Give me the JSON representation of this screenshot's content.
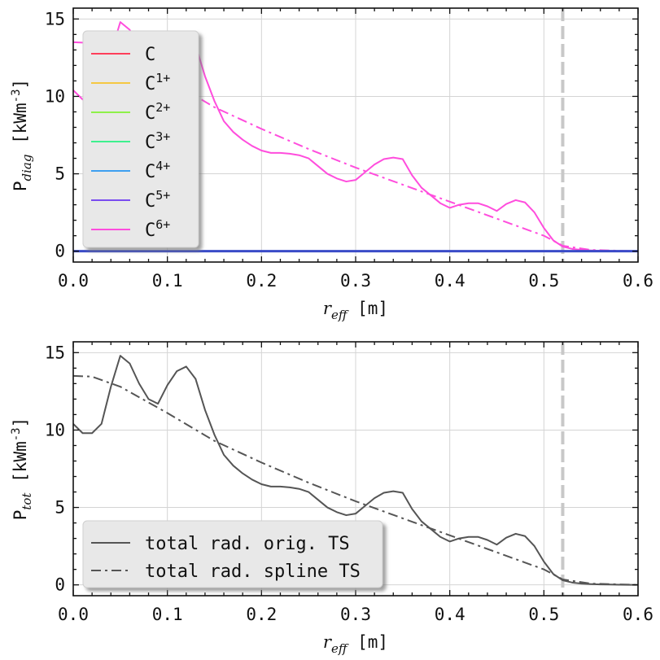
{
  "chart_data": [
    {
      "type": "line",
      "xlabel": "r_eff [m]",
      "ylabel": "P_diag [kWm^-3]",
      "xlim": [
        0.0,
        0.6
      ],
      "ylim": [
        -0.7,
        15.7
      ],
      "xticks": [
        0.0,
        0.1,
        0.2,
        0.3,
        0.4,
        0.5,
        0.6
      ],
      "xtick_labels": [
        "0.0",
        "0.1",
        "0.2",
        "0.3",
        "0.4",
        "0.5",
        "0.6"
      ],
      "yticks": [
        0,
        5,
        10,
        15
      ],
      "ytick_labels": [
        "0",
        "5",
        "10",
        "15"
      ],
      "grid": true,
      "legend_position": "upper-left",
      "vline": {
        "x": 0.52,
        "color": "#c8c8c8",
        "style": "dashed"
      },
      "series": [
        {
          "name": "C",
          "base": "C",
          "sup": "",
          "color": "#ff3e5a",
          "style": "solid",
          "x": [
            0.0,
            0.1,
            0.2,
            0.3,
            0.4,
            0.5,
            0.6
          ],
          "y": [
            0,
            0,
            0,
            0,
            0,
            0,
            0
          ]
        },
        {
          "name": "C1+",
          "base": "C",
          "sup": "1+",
          "color": "#f5c842",
          "style": "solid",
          "x": [
            0.0,
            0.1,
            0.2,
            0.3,
            0.4,
            0.5,
            0.6
          ],
          "y": [
            0,
            0,
            0,
            0,
            0,
            0,
            0
          ]
        },
        {
          "name": "C2+",
          "base": "C",
          "sup": "2+",
          "color": "#8ef049",
          "style": "solid",
          "x": [
            0.0,
            0.1,
            0.2,
            0.3,
            0.4,
            0.5,
            0.6
          ],
          "y": [
            0,
            0,
            0,
            0,
            0,
            0,
            0
          ]
        },
        {
          "name": "C3+",
          "base": "C",
          "sup": "3+",
          "color": "#3ef08e",
          "style": "solid",
          "x": [
            0.0,
            0.1,
            0.2,
            0.3,
            0.4,
            0.5,
            0.6
          ],
          "y": [
            0,
            0,
            0,
            0,
            0,
            0,
            0
          ]
        },
        {
          "name": "C4+",
          "base": "C",
          "sup": "4+",
          "color": "#3ea0f0",
          "style": "solid",
          "x": [
            0.0,
            0.1,
            0.2,
            0.3,
            0.4,
            0.5,
            0.6
          ],
          "y": [
            0,
            0,
            0,
            0,
            0,
            0,
            0
          ]
        },
        {
          "name": "C5+",
          "base": "C",
          "sup": "5+",
          "color": "#7a4cf0",
          "style": "solid",
          "x": [
            0.0,
            0.1,
            0.2,
            0.3,
            0.4,
            0.5,
            0.6
          ],
          "y": [
            0,
            0,
            0,
            0,
            0,
            0,
            0
          ]
        },
        {
          "name": "C6+",
          "base": "C",
          "sup": "6+",
          "color": "#ff4ddd",
          "style": "solid",
          "x": [
            0.0,
            0.01,
            0.02,
            0.03,
            0.04,
            0.05,
            0.06,
            0.07,
            0.08,
            0.09,
            0.1,
            0.11,
            0.12,
            0.13,
            0.14,
            0.15,
            0.16,
            0.17,
            0.18,
            0.19,
            0.2,
            0.21,
            0.22,
            0.23,
            0.24,
            0.25,
            0.26,
            0.27,
            0.28,
            0.29,
            0.3,
            0.31,
            0.32,
            0.33,
            0.34,
            0.35,
            0.36,
            0.37,
            0.38,
            0.39,
            0.4,
            0.41,
            0.42,
            0.43,
            0.44,
            0.45,
            0.46,
            0.47,
            0.48,
            0.49,
            0.5,
            0.51,
            0.52,
            0.53,
            0.54,
            0.55,
            0.56,
            0.57,
            0.58,
            0.59,
            0.6
          ],
          "y": [
            10.4,
            9.8,
            9.8,
            10.4,
            12.8,
            14.8,
            14.3,
            13.0,
            12.0,
            11.7,
            12.9,
            13.8,
            14.1,
            13.3,
            11.3,
            9.7,
            8.4,
            7.7,
            7.2,
            6.8,
            6.5,
            6.35,
            6.35,
            6.3,
            6.2,
            6.0,
            5.5,
            5.0,
            4.7,
            4.5,
            4.6,
            5.1,
            5.6,
            5.95,
            6.05,
            5.95,
            4.9,
            4.1,
            3.6,
            3.1,
            2.8,
            3.0,
            3.1,
            3.1,
            2.9,
            2.6,
            3.05,
            3.3,
            3.15,
            2.5,
            1.5,
            0.7,
            0.3,
            0.15,
            0.08,
            0.05,
            0.03,
            0.02,
            0.01,
            0.0,
            0.0
          ]
        },
        {
          "name": "C6+ spline",
          "color": "#ff4ddd",
          "style": "dashdot",
          "x": [
            0.0,
            0.02,
            0.05,
            0.1,
            0.15,
            0.2,
            0.25,
            0.3,
            0.35,
            0.4,
            0.45,
            0.5,
            0.52,
            0.55,
            0.6
          ],
          "y": [
            13.5,
            13.45,
            12.8,
            11.1,
            9.3,
            7.9,
            6.6,
            5.4,
            4.3,
            3.2,
            2.1,
            1.0,
            0.35,
            0.08,
            0.0
          ]
        }
      ]
    },
    {
      "type": "line",
      "xlabel": "r_eff [m]",
      "ylabel": "P_tot [kWm^-3]",
      "xlim": [
        0.0,
        0.6
      ],
      "ylim": [
        -0.7,
        15.7
      ],
      "xticks": [
        0.0,
        0.1,
        0.2,
        0.3,
        0.4,
        0.5,
        0.6
      ],
      "xtick_labels": [
        "0.0",
        "0.1",
        "0.2",
        "0.3",
        "0.4",
        "0.5",
        "0.6"
      ],
      "yticks": [
        0,
        5,
        10,
        15
      ],
      "ytick_labels": [
        "0",
        "5",
        "10",
        "15"
      ],
      "grid": true,
      "legend_position": "lower-left",
      "vline": {
        "x": 0.52,
        "color": "#c8c8c8",
        "style": "dashed"
      },
      "series": [
        {
          "name": "total rad. orig. TS",
          "color": "#555555",
          "style": "solid",
          "x": [
            0.0,
            0.01,
            0.02,
            0.03,
            0.04,
            0.05,
            0.06,
            0.07,
            0.08,
            0.09,
            0.1,
            0.11,
            0.12,
            0.13,
            0.14,
            0.15,
            0.16,
            0.17,
            0.18,
            0.19,
            0.2,
            0.21,
            0.22,
            0.23,
            0.24,
            0.25,
            0.26,
            0.27,
            0.28,
            0.29,
            0.3,
            0.31,
            0.32,
            0.33,
            0.34,
            0.35,
            0.36,
            0.37,
            0.38,
            0.39,
            0.4,
            0.41,
            0.42,
            0.43,
            0.44,
            0.45,
            0.46,
            0.47,
            0.48,
            0.49,
            0.5,
            0.51,
            0.52,
            0.53,
            0.54,
            0.55,
            0.56,
            0.57,
            0.58,
            0.59,
            0.6
          ],
          "y": [
            10.4,
            9.8,
            9.8,
            10.4,
            12.8,
            14.8,
            14.3,
            13.0,
            12.0,
            11.7,
            12.9,
            13.8,
            14.1,
            13.3,
            11.3,
            9.7,
            8.4,
            7.7,
            7.2,
            6.8,
            6.5,
            6.35,
            6.35,
            6.3,
            6.2,
            6.0,
            5.5,
            5.0,
            4.7,
            4.5,
            4.6,
            5.1,
            5.6,
            5.95,
            6.05,
            5.95,
            4.9,
            4.1,
            3.6,
            3.1,
            2.8,
            3.0,
            3.1,
            3.1,
            2.9,
            2.6,
            3.05,
            3.3,
            3.15,
            2.5,
            1.5,
            0.7,
            0.3,
            0.15,
            0.08,
            0.05,
            0.03,
            0.02,
            0.01,
            0.0,
            0.0
          ]
        },
        {
          "name": "total rad. spline TS",
          "color": "#555555",
          "style": "dashdot",
          "x": [
            0.0,
            0.02,
            0.05,
            0.1,
            0.15,
            0.2,
            0.25,
            0.3,
            0.35,
            0.4,
            0.45,
            0.5,
            0.52,
            0.55,
            0.6
          ],
          "y": [
            13.5,
            13.45,
            12.8,
            11.1,
            9.3,
            7.9,
            6.6,
            5.4,
            4.3,
            3.2,
            2.1,
            1.0,
            0.35,
            0.08,
            0.0
          ]
        }
      ]
    }
  ]
}
